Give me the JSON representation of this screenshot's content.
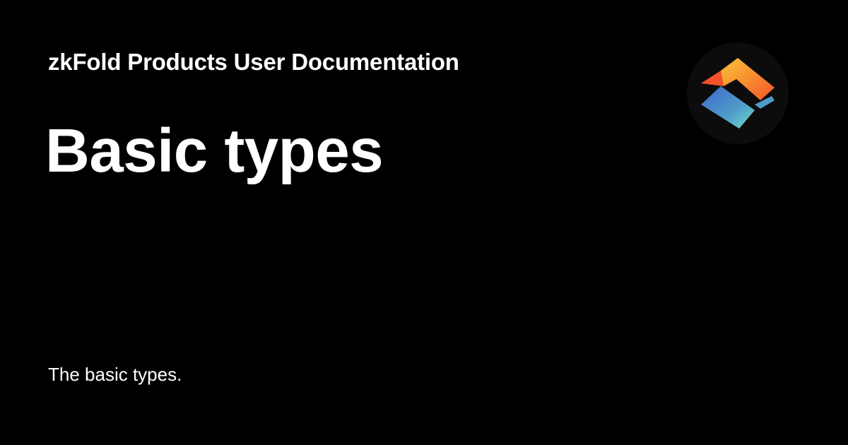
{
  "card": {
    "site_name": "zkFold Products User Documentation",
    "title": "Basic types",
    "description": "The basic types."
  },
  "logo": {
    "icon": "zkfold-logo-icon"
  },
  "colors": {
    "background": "#000000",
    "text": "#ffffff",
    "logo_circle": "#0c0c0c",
    "logo_orange": "#f5522a",
    "logo_yellow": "#f9c339",
    "logo_blue": "#3d66c9",
    "logo_teal": "#73e0cc"
  }
}
